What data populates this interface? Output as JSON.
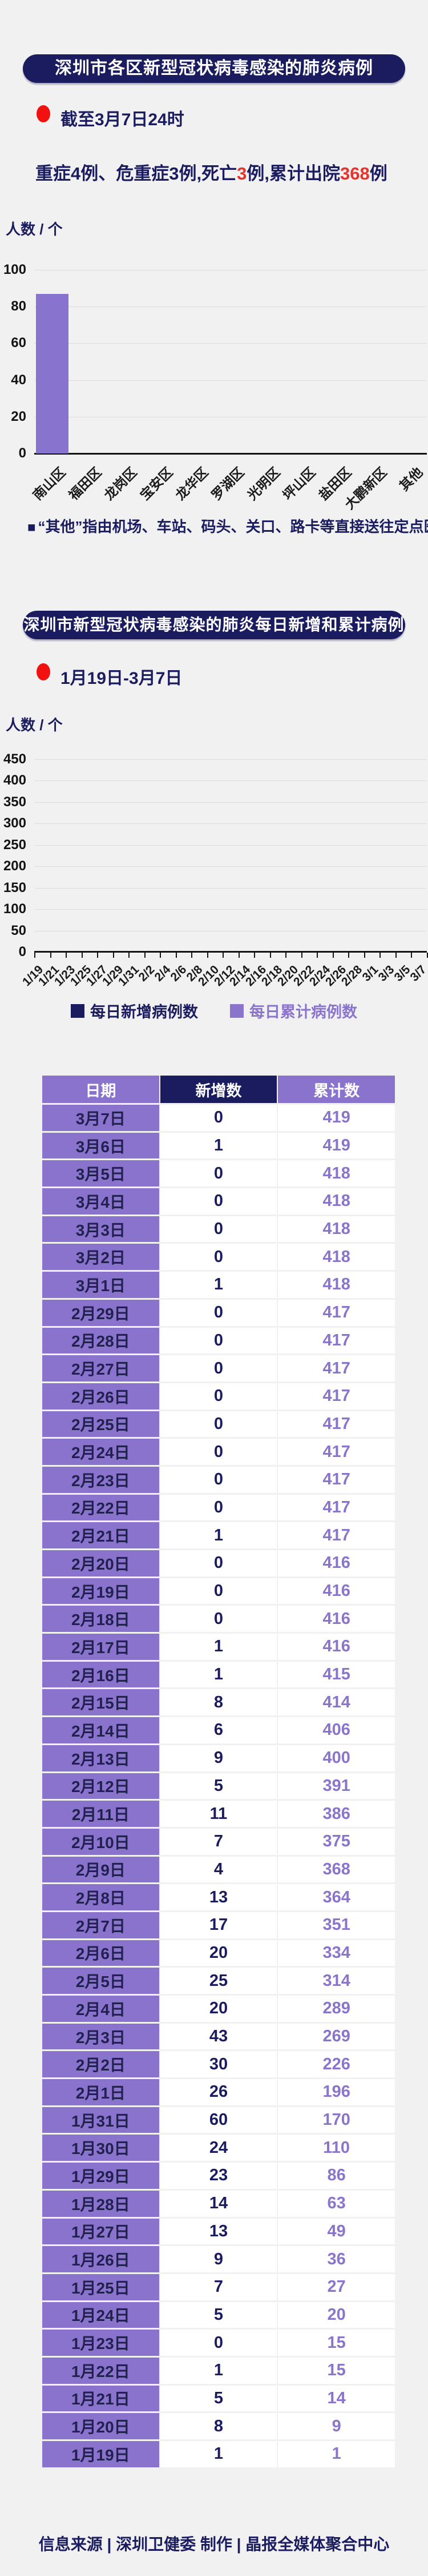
{
  "colors": {
    "background": "#f1f1f2",
    "navy": "#1b1c60",
    "purple": "#8a74cc",
    "bar_purple": "#8873cf",
    "red": "#e8332c",
    "dot_red": "#f21111",
    "grid": "#dcdcdc",
    "axis": "#141414"
  },
  "section1": {
    "title": "深圳市各区新型冠状病毒感染的肺炎病例",
    "period": "截至3月7日24时",
    "summary": {
      "part1": "重症4例、危重症3例,死亡",
      "deaths": "3",
      "part2": "例,累计出院",
      "discharged": "368",
      "part3": "例"
    },
    "footnote_bullet": "■",
    "footnote": "“其他”指由机场、车站、码头、关口、路卡等直接送往定点医院的"
  },
  "section2": {
    "title": "深圳市新型冠状病毒感染的肺炎每日新增和累计病例",
    "period": "1月19日-3月7日"
  },
  "chart_data": [
    {
      "type": "bar",
      "title": "深圳市各区新型冠状病毒感染的肺炎病例",
      "ylabel": "人数 / 个",
      "ylim": [
        0,
        100
      ],
      "yticks": [
        100,
        80,
        60,
        40,
        20,
        0
      ],
      "grid": true,
      "categories": [
        "南山区",
        "福田区",
        "龙岗区",
        "宝安区",
        "龙华区",
        "罗湖区",
        "光明区",
        "坪山区",
        "盐田区",
        "大鹏新区",
        "其他"
      ],
      "values": [
        87,
        0,
        0,
        0,
        0,
        0,
        0,
        0,
        0,
        0,
        0
      ],
      "bar_color": "#8873cf"
    },
    {
      "type": "line",
      "title": "深圳市新型冠状病毒感染的肺炎每日新增和累计病例",
      "ylabel": "人数 / 个",
      "ylim": [
        0,
        450
      ],
      "yticks": [
        450,
        400,
        350,
        300,
        250,
        200,
        150,
        100,
        50,
        0
      ],
      "grid": true,
      "legend_position": "bottom",
      "x": [
        "1/19",
        "1/21",
        "1/23",
        "1/25",
        "1/27",
        "1/29",
        "1/31",
        "2/2",
        "2/4",
        "2/6",
        "2/8",
        "2/10",
        "2/12",
        "2/14",
        "2/16",
        "2/18",
        "2/20",
        "2/22",
        "2/24",
        "2/26",
        "2/28",
        "3/1",
        "3/3",
        "3/5",
        "3/7"
      ],
      "series": [
        {
          "name": "每日新增病例数",
          "color": "#1b1c60",
          "values": []
        },
        {
          "name": "每日累计病例数",
          "color": "#8a74cc",
          "values": []
        }
      ]
    }
  ],
  "table": {
    "headers": [
      "日期",
      "新增数",
      "累计数"
    ],
    "rows": [
      [
        "3月7日",
        "0",
        "419"
      ],
      [
        "3月6日",
        "1",
        "419"
      ],
      [
        "3月5日",
        "0",
        "418"
      ],
      [
        "3月4日",
        "0",
        "418"
      ],
      [
        "3月3日",
        "0",
        "418"
      ],
      [
        "3月2日",
        "0",
        "418"
      ],
      [
        "3月1日",
        "1",
        "418"
      ],
      [
        "2月29日",
        "0",
        "417"
      ],
      [
        "2月28日",
        "0",
        "417"
      ],
      [
        "2月27日",
        "0",
        "417"
      ],
      [
        "2月26日",
        "0",
        "417"
      ],
      [
        "2月25日",
        "0",
        "417"
      ],
      [
        "2月24日",
        "0",
        "417"
      ],
      [
        "2月23日",
        "0",
        "417"
      ],
      [
        "2月22日",
        "0",
        "417"
      ],
      [
        "2月21日",
        "1",
        "417"
      ],
      [
        "2月20日",
        "0",
        "416"
      ],
      [
        "2月19日",
        "0",
        "416"
      ],
      [
        "2月18日",
        "0",
        "416"
      ],
      [
        "2月17日",
        "1",
        "416"
      ],
      [
        "2月16日",
        "1",
        "415"
      ],
      [
        "2月15日",
        "8",
        "414"
      ],
      [
        "2月14日",
        "6",
        "406"
      ],
      [
        "2月13日",
        "9",
        "400"
      ],
      [
        "2月12日",
        "5",
        "391"
      ],
      [
        "2月11日",
        "11",
        "386"
      ],
      [
        "2月10日",
        "7",
        "375"
      ],
      [
        "2月9日",
        "4",
        "368"
      ],
      [
        "2月8日",
        "13",
        "364"
      ],
      [
        "2月7日",
        "17",
        "351"
      ],
      [
        "2月6日",
        "20",
        "334"
      ],
      [
        "2月5日",
        "25",
        "314"
      ],
      [
        "2月4日",
        "20",
        "289"
      ],
      [
        "2月3日",
        "43",
        "269"
      ],
      [
        "2月2日",
        "30",
        "226"
      ],
      [
        "2月1日",
        "26",
        "196"
      ],
      [
        "1月31日",
        "60",
        "170"
      ],
      [
        "1月30日",
        "24",
        "110"
      ],
      [
        "1月29日",
        "23",
        "86"
      ],
      [
        "1月28日",
        "14",
        "63"
      ],
      [
        "1月27日",
        "13",
        "49"
      ],
      [
        "1月26日",
        "9",
        "36"
      ],
      [
        "1月25日",
        "7",
        "27"
      ],
      [
        "1月24日",
        "5",
        "20"
      ],
      [
        "1月23日",
        "0",
        "15"
      ],
      [
        "1月22日",
        "1",
        "15"
      ],
      [
        "1月21日",
        "5",
        "14"
      ],
      [
        "1月20日",
        "8",
        "9"
      ],
      [
        "1月19日",
        "1",
        "1"
      ]
    ]
  },
  "footer": "信息来源 | 深圳卫健委 制作 | 晶报全媒体聚合中心"
}
